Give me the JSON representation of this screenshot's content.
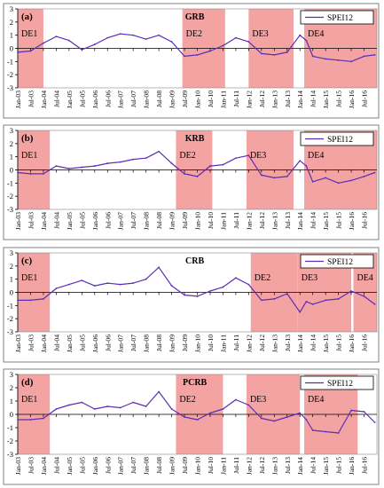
{
  "colors": {
    "shade": "#f4a3a3",
    "line": "#5b2db5",
    "frame": "#808080",
    "axis": "#000000"
  },
  "chart_data": [
    {
      "type": "line",
      "panel_label": "(a)",
      "title": "GRB",
      "legend": "SPEI12",
      "ylim": [
        -3,
        3
      ],
      "yticks": [
        -3,
        -2,
        -1,
        0,
        1,
        2,
        3
      ],
      "x_tick_labels": [
        "Jan-03",
        "Jul-03",
        "Jan-04",
        "Jul-04",
        "Jan-05",
        "Jul-05",
        "Jan-06",
        "Jul-06",
        "Jan-07",
        "Jul-07",
        "Jan-08",
        "Jul-08",
        "Jan-09",
        "Jul-09",
        "Jan-10",
        "Jul-10",
        "Jan-11",
        "Jul-11",
        "Jan-12",
        "Jul-12",
        "Jan-13",
        "Jul-13",
        "Jan-14",
        "Jul-14",
        "Jan-15",
        "Jul-15",
        "Jan-16",
        "Jul-16"
      ],
      "drought_events": [
        {
          "label": "DE1",
          "start": "2003-01",
          "end": "2003-12"
        },
        {
          "label": "DE2",
          "start": "2009-06",
          "end": "2011-01"
        },
        {
          "label": "DE3",
          "start": "2012-01",
          "end": "2013-09"
        },
        {
          "label": "DE4",
          "start": "2014-03",
          "end": "2016-12"
        }
      ],
      "series": [
        {
          "name": "SPEI12",
          "x": [
            "2003-01",
            "2003-07",
            "2004-01",
            "2004-07",
            "2005-01",
            "2005-07",
            "2006-01",
            "2006-07",
            "2007-01",
            "2007-07",
            "2008-01",
            "2008-07",
            "2009-01",
            "2009-07",
            "2010-01",
            "2010-07",
            "2011-01",
            "2011-07",
            "2012-01",
            "2012-07",
            "2013-01",
            "2013-07",
            "2014-01",
            "2014-04",
            "2014-07",
            "2015-01",
            "2015-07",
            "2016-01",
            "2016-07",
            "2016-12"
          ],
          "values": [
            -0.3,
            -0.2,
            0.4,
            0.9,
            0.6,
            -0.1,
            0.3,
            0.8,
            1.1,
            1.0,
            0.7,
            1.0,
            0.5,
            -0.6,
            -0.5,
            -0.2,
            0.2,
            0.8,
            0.5,
            -0.4,
            -0.5,
            -0.3,
            1.0,
            0.6,
            -0.6,
            -0.8,
            -0.9,
            -1.0,
            -0.6,
            -0.5
          ]
        }
      ]
    },
    {
      "type": "line",
      "panel_label": "(b)",
      "title": "KRB",
      "legend": "SPEI12",
      "ylim": [
        -3,
        3
      ],
      "yticks": [
        -3,
        -2,
        -1,
        0,
        1,
        2,
        3
      ],
      "x_tick_labels": [
        "Jan-03",
        "Jul-03",
        "Jan-04",
        "Jul-04",
        "Jan-05",
        "Jul-05",
        "Jan-06",
        "Jul-06",
        "Jan-07",
        "Jul-07",
        "Jan-08",
        "Jul-08",
        "Jan-09",
        "Jul-09",
        "Jan-10",
        "Jul-10",
        "Jan-11",
        "Jul-11",
        "Jan-12",
        "Jul-12",
        "Jan-13",
        "Jul-13",
        "Jan-14",
        "Jul-14",
        "Jan-15",
        "Jul-15",
        "Jan-16",
        "Jul-16"
      ],
      "drought_events": [
        {
          "label": "DE1",
          "start": "2003-01",
          "end": "2004-03"
        },
        {
          "label": "DE2",
          "start": "2009-03",
          "end": "2010-07"
        },
        {
          "label": "DE3",
          "start": "2011-12",
          "end": "2013-09"
        },
        {
          "label": "DE4",
          "start": "2014-03",
          "end": "2016-12"
        }
      ],
      "series": [
        {
          "name": "SPEI12",
          "x": [
            "2003-01",
            "2003-07",
            "2004-01",
            "2004-07",
            "2005-01",
            "2005-07",
            "2006-01",
            "2006-07",
            "2007-01",
            "2007-07",
            "2008-01",
            "2008-07",
            "2009-01",
            "2009-07",
            "2010-01",
            "2010-07",
            "2011-01",
            "2011-07",
            "2012-01",
            "2012-07",
            "2013-01",
            "2013-07",
            "2014-01",
            "2014-04",
            "2014-07",
            "2015-01",
            "2015-07",
            "2016-01",
            "2016-07",
            "2016-12"
          ],
          "values": [
            -0.2,
            -0.3,
            -0.3,
            0.3,
            0.1,
            0.2,
            0.3,
            0.5,
            0.6,
            0.8,
            0.9,
            1.4,
            0.5,
            -0.3,
            -0.5,
            0.3,
            0.4,
            0.9,
            1.1,
            -0.4,
            -0.6,
            -0.5,
            0.7,
            0.3,
            -0.9,
            -0.6,
            -1.0,
            -0.8,
            -0.5,
            -0.2
          ]
        }
      ]
    },
    {
      "type": "line",
      "panel_label": "(c)",
      "title": "CRB",
      "legend": "SPEI12",
      "ylim": [
        -3,
        3
      ],
      "yticks": [
        -3,
        -2,
        -1,
        0,
        1,
        2,
        3
      ],
      "x_tick_labels": [
        "Jan-03",
        "Jul-03",
        "Jan-04",
        "Jul-04",
        "Jan-05",
        "Jul-05",
        "Jan-06",
        "Jul-06",
        "Jan-07",
        "Jul-07",
        "Jan-08",
        "Jul-08",
        "Jan-09",
        "Jul-09",
        "Jan-10",
        "Jul-10",
        "Jan-11",
        "Jul-11",
        "Jan-12",
        "Jul-12",
        "Jan-13",
        "Jul-13",
        "Jan-14",
        "Jul-14",
        "Jan-15",
        "Jul-15",
        "Jan-16",
        "Jul-16"
      ],
      "drought_events": [
        {
          "label": "DE1",
          "start": "2003-01",
          "end": "2004-03"
        },
        {
          "label": "DE2",
          "start": "2012-02",
          "end": "2013-11"
        },
        {
          "label": "DE3",
          "start": "2013-12",
          "end": "2015-12"
        },
        {
          "label": "DE4",
          "start": "2016-02",
          "end": "2016-12"
        }
      ],
      "series": [
        {
          "name": "SPEI12",
          "x": [
            "2003-01",
            "2003-07",
            "2004-01",
            "2004-07",
            "2005-01",
            "2005-07",
            "2006-01",
            "2006-07",
            "2007-01",
            "2007-07",
            "2008-01",
            "2008-07",
            "2009-01",
            "2009-07",
            "2010-01",
            "2010-07",
            "2011-01",
            "2011-07",
            "2012-01",
            "2012-07",
            "2013-01",
            "2013-07",
            "2014-01",
            "2014-04",
            "2014-07",
            "2015-01",
            "2015-07",
            "2016-01",
            "2016-07",
            "2016-12"
          ],
          "values": [
            -0.6,
            -0.6,
            -0.5,
            0.3,
            0.6,
            0.9,
            0.5,
            0.7,
            0.6,
            0.7,
            1.0,
            1.9,
            0.5,
            -0.2,
            -0.3,
            0.1,
            0.4,
            1.1,
            0.6,
            -0.6,
            -0.5,
            -0.1,
            -1.5,
            -0.7,
            -0.9,
            -0.6,
            -0.5,
            0.1,
            -0.3,
            -0.9
          ]
        }
      ]
    },
    {
      "type": "line",
      "panel_label": "(d)",
      "title": "PCRB",
      "legend": "SPEI12",
      "ylim": [
        -3,
        3
      ],
      "yticks": [
        -3,
        -2,
        -1,
        0,
        1,
        2,
        3
      ],
      "x_tick_labels": [
        "Jan-03",
        "Jul-03",
        "Jan-04",
        "Jul-04",
        "Jan-05",
        "Jul-05",
        "Jan-06",
        "Jul-06",
        "Jan-07",
        "Jul-07",
        "Jan-08",
        "Jul-08",
        "Jan-09",
        "Jul-09",
        "Jan-10",
        "Jul-10",
        "Jan-11",
        "Jul-11",
        "Jan-12",
        "Jul-12",
        "Jan-13",
        "Jul-13",
        "Jan-14",
        "Jul-14",
        "Jan-15",
        "Jul-15",
        "Jan-16",
        "Jul-16"
      ],
      "drought_events": [
        {
          "label": "DE1",
          "start": "2003-01",
          "end": "2004-03"
        },
        {
          "label": "DE2",
          "start": "2009-03",
          "end": "2010-12"
        },
        {
          "label": "DE3",
          "start": "2011-12",
          "end": "2013-12"
        },
        {
          "label": "DE4",
          "start": "2014-03",
          "end": "2016-03"
        }
      ],
      "series": [
        {
          "name": "SPEI12",
          "x": [
            "2003-01",
            "2003-07",
            "2004-01",
            "2004-07",
            "2005-01",
            "2005-07",
            "2006-01",
            "2006-07",
            "2007-01",
            "2007-07",
            "2008-01",
            "2008-07",
            "2009-01",
            "2009-07",
            "2010-01",
            "2010-07",
            "2011-01",
            "2011-07",
            "2012-01",
            "2012-07",
            "2013-01",
            "2013-07",
            "2014-01",
            "2014-04",
            "2014-07",
            "2015-01",
            "2015-07",
            "2016-01",
            "2016-07",
            "2016-12"
          ],
          "values": [
            -0.4,
            -0.4,
            -0.3,
            0.4,
            0.7,
            0.9,
            0.4,
            0.6,
            0.5,
            0.9,
            0.6,
            1.7,
            0.4,
            -0.2,
            -0.4,
            0.1,
            0.4,
            1.1,
            0.7,
            -0.3,
            -0.5,
            -0.2,
            0.1,
            -0.4,
            -1.2,
            -1.3,
            -1.4,
            0.3,
            0.2,
            -0.6
          ]
        }
      ]
    }
  ]
}
